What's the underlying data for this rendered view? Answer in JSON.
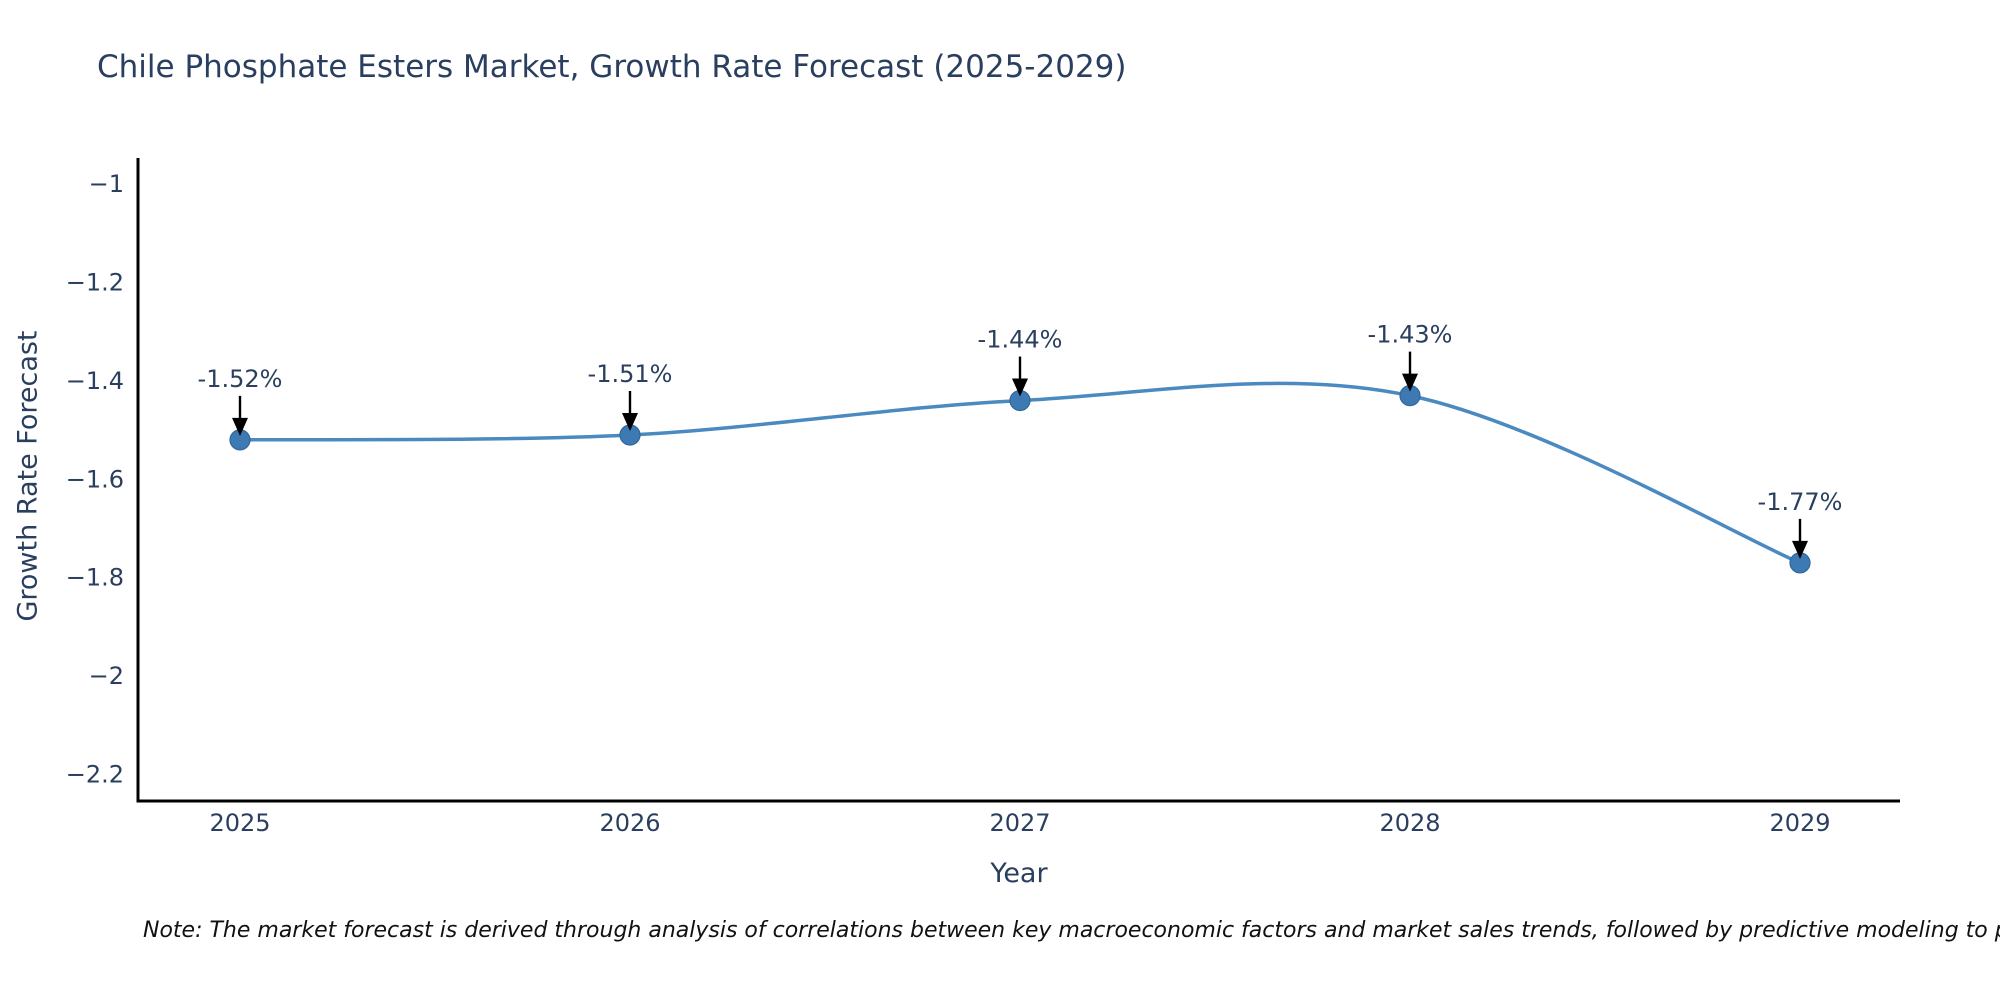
{
  "title": "Chile Phosphate Esters Market, Growth Rate Forecast (2025-2029)",
  "note": "Note: The market forecast is derived through analysis of correlations between key macroeconomic factors and market sales trends, followed by predictive modeling to project future sa",
  "chart_data": {
    "type": "line",
    "title": "Chile Phosphate Esters Market, Growth Rate Forecast (2025-2029)",
    "xlabel": "Year",
    "ylabel": "Growth Rate Forecast",
    "categories": [
      "2025",
      "2026",
      "2027",
      "2028",
      "2029"
    ],
    "series": [
      {
        "name": "Growth Rate Forecast",
        "values": [
          -1.52,
          -1.51,
          -1.44,
          -1.43,
          -1.77
        ]
      }
    ],
    "point_labels": [
      "-1.52%",
      "-1.51%",
      "-1.44%",
      "-1.43%",
      "-1.77%"
    ],
    "yticks": [
      -1,
      -1.2,
      -1.4,
      -1.6,
      -1.8,
      -2,
      -2.2
    ],
    "ytick_labels": [
      "−1",
      "−1.2",
      "−1.4",
      "−1.6",
      "−1.8",
      "−2",
      "−2.2"
    ],
    "ylim": [
      -2.254,
      -0.947
    ],
    "line_shape": "spline",
    "grid": false,
    "legend": "none",
    "colors": {
      "line": "#4a8ac0",
      "marker": "#3d7ab3",
      "marker_edge": "#336699",
      "axis": "#000000",
      "text": "#2a3f5f",
      "arrow": "#000000",
      "background": "#ffffff"
    }
  }
}
